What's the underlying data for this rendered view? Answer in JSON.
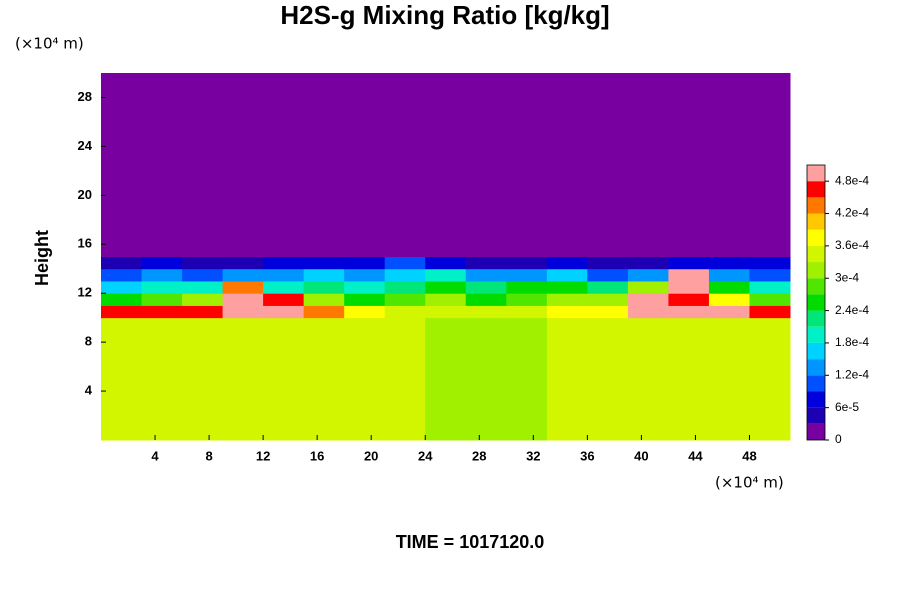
{
  "chart_data": {
    "type": "heatmap",
    "title": "H2S-g Mixing Ratio [kg/kg]",
    "ylabel": "Height",
    "y_unit": "(×10⁴ m)",
    "x_unit": "(×10⁴ m)",
    "footer": "TIME = 1017120.0",
    "xlim": [
      0,
      51
    ],
    "ylim": [
      0,
      30
    ],
    "xticks": [
      4,
      8,
      12,
      16,
      20,
      24,
      28,
      32,
      36,
      40,
      44,
      48
    ],
    "yticks": [
      4,
      8,
      12,
      16,
      20,
      24,
      28
    ],
    "x_edges": [
      0,
      3,
      6,
      9,
      12,
      15,
      18,
      21,
      24,
      27,
      30,
      33,
      36,
      39,
      42,
      45,
      48,
      51
    ],
    "y_edges": [
      0,
      10,
      11,
      12,
      13,
      14,
      15,
      30
    ],
    "z": [
      [
        0.00034,
        0.00034,
        0.00034,
        0.00034,
        0.00034,
        0.00034,
        0.00034,
        0.00034,
        0.00032,
        0.00032,
        0.00032,
        0.00034,
        0.00034,
        0.00034,
        0.00034,
        0.00034,
        0.00034
      ],
      [
        0.00046,
        0.00047,
        0.00046,
        0.0005,
        0.00048,
        0.00044,
        0.00036,
        0.00035,
        0.00035,
        0.00034,
        0.00035,
        0.00036,
        0.00038,
        0.0005,
        0.0005,
        0.00048,
        0.00046
      ],
      [
        0.00024,
        0.00027,
        0.0003,
        0.0005,
        0.00045,
        0.0003,
        0.00026,
        0.00027,
        0.0003,
        0.00026,
        0.00028,
        0.0003,
        0.00032,
        0.0005,
        0.00046,
        0.00038,
        0.00028
      ],
      [
        0.00016,
        0.00018,
        0.0002,
        0.00042,
        0.0002,
        0.00022,
        0.0002,
        0.00022,
        0.00024,
        0.00022,
        0.00024,
        0.00025,
        0.00022,
        0.0003,
        0.00048,
        0.00026,
        0.0002
      ],
      [
        9e-05,
        0.00012,
        0.0001,
        0.00014,
        0.00012,
        0.00015,
        0.00013,
        0.00016,
        0.00018,
        0.00014,
        0.00012,
        0.00015,
        0.0001,
        0.00012,
        0.0005,
        0.00012,
        0.0001
      ],
      [
        5e-05,
        6e-05,
        4e-05,
        5e-05,
        6e-05,
        7e-05,
        8e-05,
        9e-05,
        6e-05,
        5e-05,
        4e-05,
        6e-05,
        5e-05,
        4e-05,
        6e-05,
        7e-05,
        6e-05
      ],
      [
        0,
        0,
        0,
        0,
        0,
        0,
        0,
        0,
        0,
        0,
        0,
        0,
        0,
        0,
        0,
        0,
        0
      ]
    ],
    "colorbar": {
      "levels": [
        0,
        3e-05,
        6e-05,
        9e-05,
        0.00012,
        0.00015,
        0.00018,
        0.00021,
        0.00024,
        0.00027,
        0.0003,
        0.00033,
        0.00036,
        0.00039,
        0.00042,
        0.00045,
        0.00048,
        0.00051
      ],
      "colors": [
        "#7800a0",
        "#1e00b4",
        "#0000dc",
        "#0050ff",
        "#0096ff",
        "#00d2ff",
        "#00f0c8",
        "#00e678",
        "#00dc00",
        "#50e600",
        "#a0f000",
        "#d2f500",
        "#ffff00",
        "#ffc800",
        "#ff7800",
        "#ff0000",
        "#ffa0a0"
      ],
      "ticks": [
        0,
        {
          "value": 6e-05,
          "label": "6e-5"
        },
        {
          "value": 0.00012,
          "label": "1.2e-4"
        },
        {
          "value": 0.00018,
          "label": "1.8e-4"
        },
        {
          "value": 0.00024,
          "label": "2.4e-4"
        },
        {
          "value": 0.0003,
          "label": "3e-4"
        },
        {
          "value": 0.00036,
          "label": "3.6e-4"
        },
        {
          "value": 0.00042,
          "label": "4.2e-4"
        },
        {
          "value": 0.00048,
          "label": "4.8e-4"
        }
      ]
    }
  }
}
